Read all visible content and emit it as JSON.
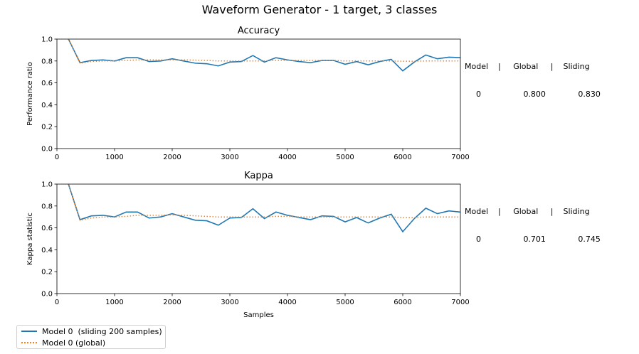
{
  "chart_data": {
    "title": "Waveform Generator - 1 target, 3 classes",
    "x": [
      200,
      400,
      600,
      800,
      1000,
      1200,
      1400,
      1600,
      1800,
      2000,
      2200,
      2400,
      2600,
      2800,
      3000,
      3200,
      3400,
      3600,
      3800,
      4000,
      4200,
      4400,
      4600,
      4800,
      5000,
      5200,
      5400,
      5600,
      5800,
      6000,
      6200,
      6400,
      6600,
      6800,
      7000
    ],
    "xlim": [
      0,
      7000
    ],
    "xticks": [
      0,
      1000,
      2000,
      3000,
      4000,
      5000,
      6000,
      7000
    ],
    "xlabel": "Samples",
    "colors": {
      "sliding": "#1f77b4",
      "global": "#ff7f0e"
    },
    "subplots": [
      {
        "type": "line",
        "title": "Accuracy",
        "ylabel": "Performance ratio",
        "ylim": [
          0,
          1
        ],
        "yticks": [
          0.0,
          0.2,
          0.4,
          0.6,
          0.8,
          1.0
        ],
        "series": [
          {
            "name": "Model 0  (sliding 200 samples)",
            "style": "solid",
            "values": [
              1.0,
              0.785,
              0.805,
              0.81,
              0.8,
              0.83,
              0.83,
              0.795,
              0.8,
              0.82,
              0.8,
              0.78,
              0.775,
              0.755,
              0.79,
              0.795,
              0.85,
              0.79,
              0.83,
              0.81,
              0.795,
              0.785,
              0.805,
              0.805,
              0.77,
              0.795,
              0.765,
              0.795,
              0.815,
              0.71,
              0.79,
              0.855,
              0.82,
              0.835,
              0.83
            ]
          },
          {
            "name": "Model 0 (global)",
            "style": "dotted",
            "values": [
              1.0,
              0.78,
              0.795,
              0.8,
              0.8,
              0.805,
              0.81,
              0.81,
              0.81,
              0.81,
              0.81,
              0.808,
              0.805,
              0.8,
              0.8,
              0.8,
              0.8,
              0.8,
              0.805,
              0.805,
              0.805,
              0.805,
              0.805,
              0.805,
              0.8,
              0.8,
              0.8,
              0.8,
              0.8,
              0.798,
              0.798,
              0.8,
              0.8,
              0.8,
              0.8
            ]
          }
        ],
        "annotation": {
          "header": "Model    |     Global     |    Sliding",
          "row": "0                 0.800             0.830"
        }
      },
      {
        "type": "line",
        "title": "Kappa",
        "ylabel": "Kappa statistic",
        "ylim": [
          0,
          1
        ],
        "yticks": [
          0.0,
          0.2,
          0.4,
          0.6,
          0.8,
          1.0
        ],
        "series": [
          {
            "name": "Model 0  (sliding 200 samples)",
            "style": "solid",
            "values": [
              1.0,
              0.675,
              0.71,
              0.715,
              0.7,
              0.745,
              0.745,
              0.69,
              0.7,
              0.73,
              0.7,
              0.67,
              0.665,
              0.625,
              0.69,
              0.695,
              0.775,
              0.685,
              0.745,
              0.715,
              0.695,
              0.675,
              0.71,
              0.705,
              0.655,
              0.695,
              0.645,
              0.69,
              0.725,
              0.565,
              0.685,
              0.78,
              0.73,
              0.755,
              0.745
            ]
          },
          {
            "name": "Model 0 (global)",
            "style": "dotted",
            "values": [
              1.0,
              0.67,
              0.69,
              0.7,
              0.7,
              0.705,
              0.715,
              0.715,
              0.715,
              0.72,
              0.715,
              0.71,
              0.705,
              0.7,
              0.7,
              0.7,
              0.7,
              0.7,
              0.705,
              0.705,
              0.7,
              0.7,
              0.7,
              0.7,
              0.7,
              0.7,
              0.7,
              0.7,
              0.7,
              0.695,
              0.695,
              0.7,
              0.7,
              0.7,
              0.7
            ]
          }
        ],
        "annotation": {
          "header": "Model    |     Global     |    Sliding",
          "row": "0                 0.701             0.745"
        }
      }
    ],
    "legend": {
      "placement": "lower-left",
      "entries": [
        "Model 0  (sliding 200 samples)",
        "Model 0 (global)"
      ]
    }
  }
}
